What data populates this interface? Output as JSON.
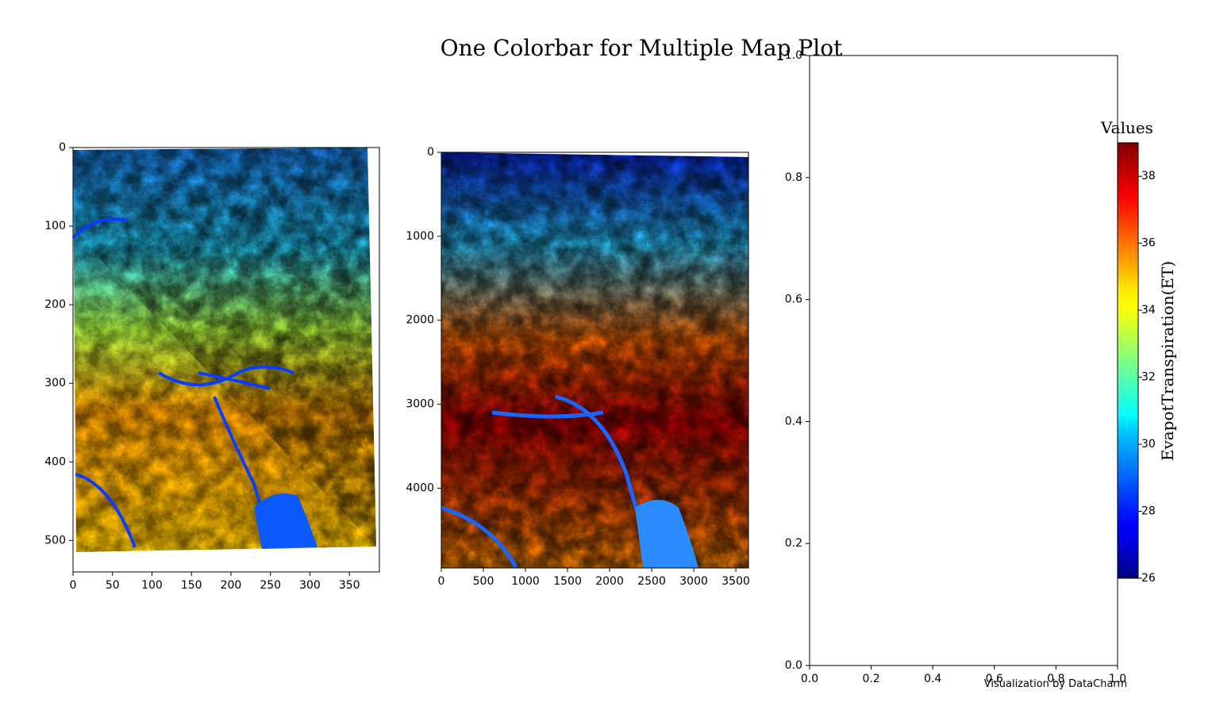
{
  "chart_data": {
    "type": "heatmap",
    "title": "One Colorbar for Multiple Map Plot",
    "credit": "Visualization by DataCharm",
    "panels": [
      {
        "name": "map-1",
        "xlim": [
          0,
          388
        ],
        "ylim": [
          540,
          0
        ],
        "xticks": [
          0,
          50,
          100,
          150,
          200,
          250,
          300,
          350
        ],
        "yticks": [
          0,
          100,
          200,
          300,
          400,
          500
        ],
        "value_range": [
          28,
          36
        ]
      },
      {
        "name": "map-2",
        "xlim": [
          0,
          3650
        ],
        "ylim": [
          4950,
          0
        ],
        "xticks": [
          0,
          500,
          1000,
          1500,
          2000,
          2500,
          3000,
          3500
        ],
        "yticks": [
          0,
          1000,
          2000,
          3000,
          4000
        ],
        "value_range": [
          26,
          39
        ]
      },
      {
        "name": "empty-axes",
        "xlim": [
          0,
          1
        ],
        "ylim": [
          0,
          1
        ],
        "xticks": [
          "0.0",
          "0.2",
          "0.4",
          "0.6",
          "0.8",
          "1.0"
        ],
        "yticks": [
          "0.0",
          "0.2",
          "0.4",
          "0.6",
          "0.8",
          "1.0"
        ]
      }
    ],
    "colorbar": {
      "title": "Values",
      "label": "EvapotTranspiration(ET)",
      "colormap": "jet",
      "range": [
        26,
        39
      ],
      "ticks": [
        26,
        28,
        30,
        32,
        34,
        36,
        38
      ]
    }
  }
}
